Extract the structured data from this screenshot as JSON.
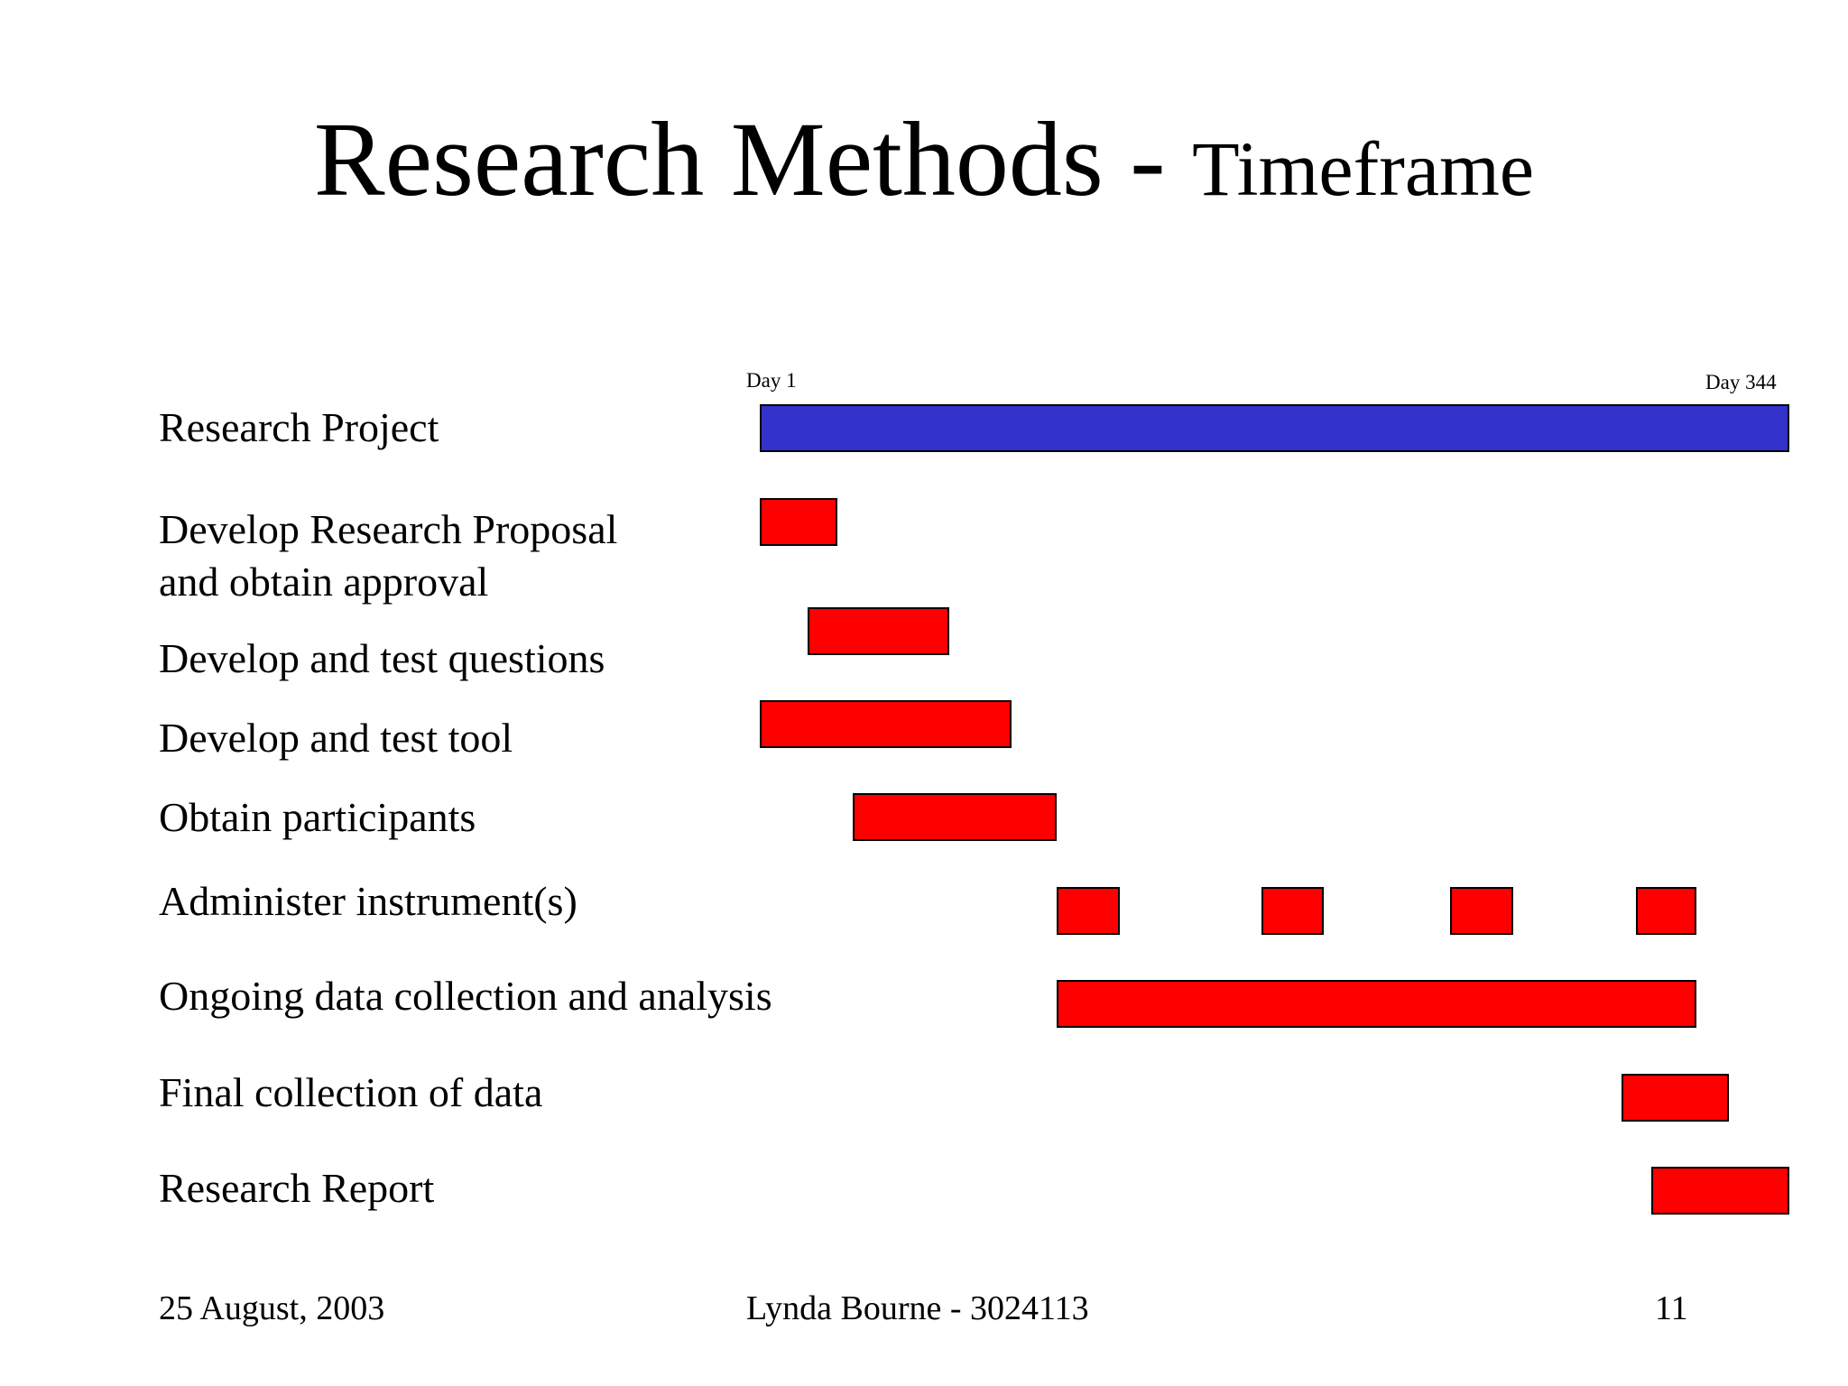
{
  "title": {
    "main": "Research Methods - ",
    "sub": "Timeframe"
  },
  "chart_data": {
    "type": "gantt",
    "x_unit": "day",
    "start_label": "Day 1",
    "end_label": "Day 344",
    "xlim": [
      1,
      344
    ],
    "colors": {
      "project": "#3333cc",
      "task": "#ff0000"
    },
    "tasks": [
      {
        "label_lines": [
          "Research Project"
        ],
        "color": "#3333cc",
        "segments": [
          [
            1,
            344
          ]
        ]
      },
      {
        "label_lines": [
          "Develop Research Proposal",
          "and obtain approval"
        ],
        "color": "#ff0000",
        "segments": [
          [
            1,
            27
          ]
        ]
      },
      {
        "label_lines": [
          "Develop and test questions"
        ],
        "color": "#ff0000",
        "segments": [
          [
            17,
            64
          ]
        ]
      },
      {
        "label_lines": [
          "Develop and test tool"
        ],
        "color": "#ff0000",
        "segments": [
          [
            1,
            85
          ]
        ]
      },
      {
        "label_lines": [
          "Obtain participants"
        ],
        "color": "#ff0000",
        "segments": [
          [
            32,
            100
          ]
        ]
      },
      {
        "label_lines": [
          "Administer instrument(s)"
        ],
        "color": "#ff0000",
        "segments": [
          [
            100,
            121
          ],
          [
            168,
            189
          ],
          [
            231,
            252
          ],
          [
            293,
            313
          ]
        ]
      },
      {
        "label_lines": [
          "Ongoing data collection and analysis"
        ],
        "color": "#ff0000",
        "segments": [
          [
            100,
            313
          ]
        ]
      },
      {
        "label_lines": [
          "Final collection of data"
        ],
        "color": "#ff0000",
        "segments": [
          [
            288,
            324
          ]
        ]
      },
      {
        "label_lines": [
          "Research Report"
        ],
        "color": "#ff0000",
        "segments": [
          [
            298,
            344
          ]
        ]
      }
    ]
  },
  "footer": {
    "date": "25 August, 2003",
    "author": "Lynda Bourne - 3024113",
    "page": "11"
  }
}
